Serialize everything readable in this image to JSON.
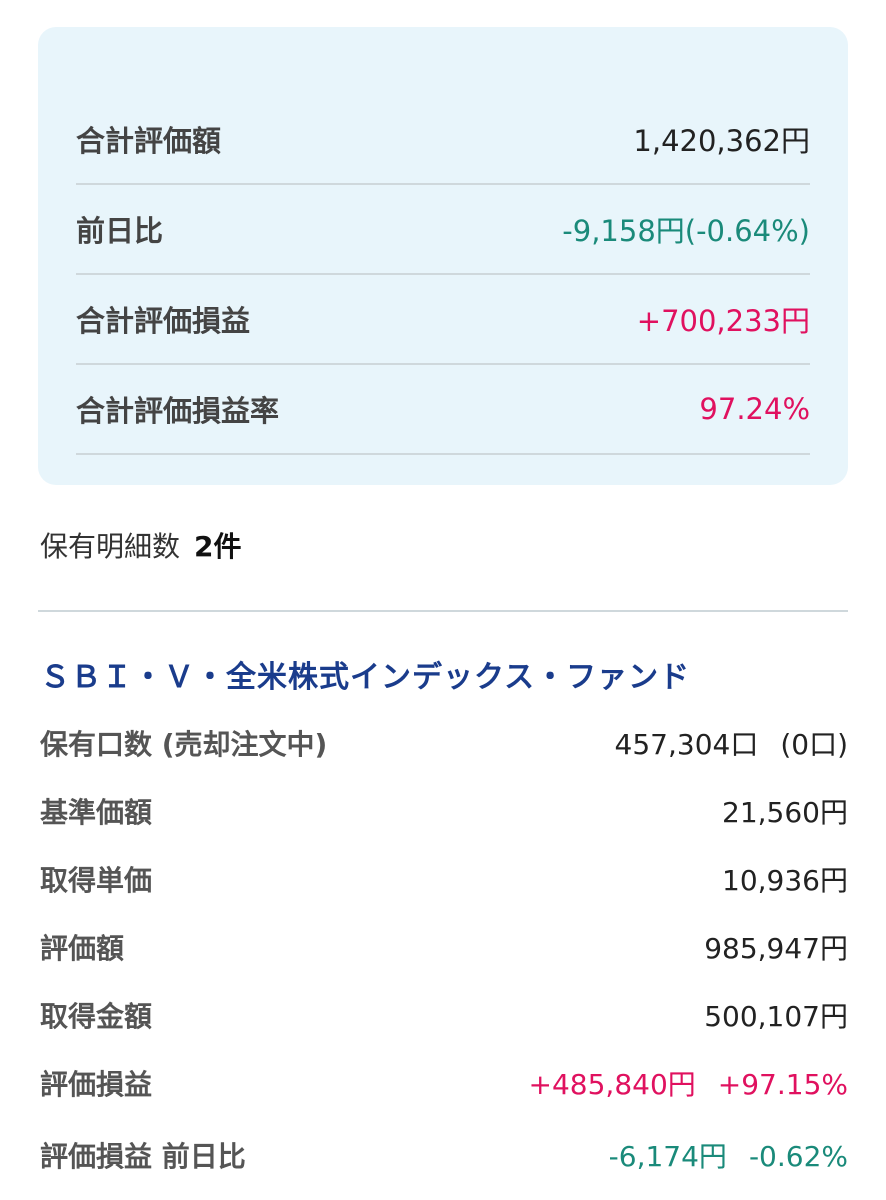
{
  "summary": {
    "rows": [
      {
        "label": "合計評価額",
        "value": "1,420,362円"
      },
      {
        "label": "前日比",
        "value": "-9,158円(-0.64%)"
      },
      {
        "label": "合計評価損益",
        "value": "+700,233円"
      },
      {
        "label": "合計評価損益率",
        "value": "97.24%"
      }
    ]
  },
  "holdings": {
    "label": "保有明細数",
    "count": "2件"
  },
  "fund": {
    "name": "ＳＢＩ・Ｖ・全米株式インデックス・ファンド",
    "units_label": "保有口数 (売却注文中)",
    "units_value": "457,304口",
    "units_pending": "(0口)",
    "nav_label": "基準価額",
    "nav_value": "21,560円",
    "cost_price_label": "取得単価",
    "cost_price_value": "10,936円",
    "valuation_label": "評価額",
    "valuation_value": "985,947円",
    "cost_amount_label": "取得金額",
    "cost_amount_value": "500,107円",
    "pl_label": "評価損益",
    "pl_amount": "+485,840円",
    "pl_percent": "+97.15%",
    "pl_day_label": "評価損益 前日比",
    "pl_day_amount": "-6,174円",
    "pl_day_percent": "-0.62%"
  },
  "colors": {
    "negative": "#1a8a7a",
    "positive": "#e0115f",
    "fund_title": "#1a3c8c",
    "card_bg": "#e8f5fb"
  }
}
